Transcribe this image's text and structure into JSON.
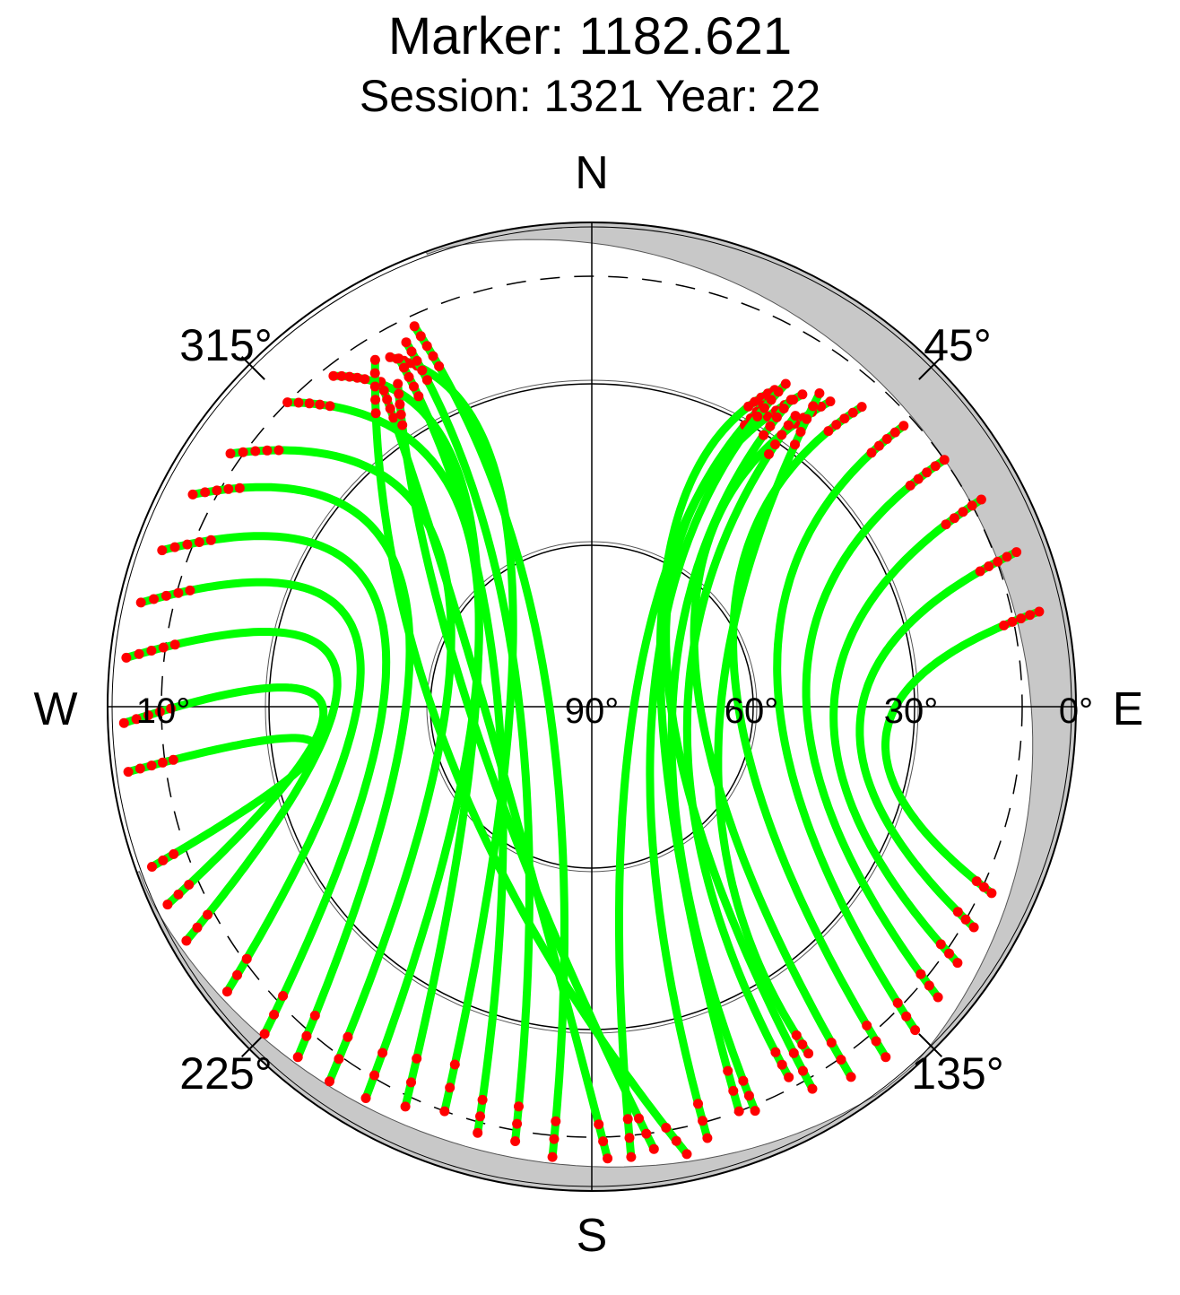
{
  "chart_data": {
    "type": "scatter",
    "projection": "polar-azimuth-elevation",
    "title": "Marker: 1182.621",
    "subtitle": "Session: 1321 Year: 22",
    "compass": {
      "north": "N",
      "south": "S",
      "east": "E",
      "west": "W"
    },
    "azimuth_ticks": [
      {
        "az": 45,
        "label": "45°"
      },
      {
        "az": 135,
        "label": "135°"
      },
      {
        "az": 225,
        "label": "225°"
      },
      {
        "az": 315,
        "label": "315°"
      }
    ],
    "elevation_ticks": [
      {
        "el": 90,
        "label": "90°"
      },
      {
        "el": 60,
        "label": "60°"
      },
      {
        "el": 30,
        "label": "30°"
      },
      {
        "el": 0,
        "label": "0°"
      },
      {
        "el": 10,
        "label": "10°",
        "side": "west"
      }
    ],
    "elevation_circles": [
      60,
      30
    ],
    "cutoff_elevation": 10,
    "elevation_range": [
      0,
      90
    ],
    "colors": {
      "valid": "#00ff00",
      "flagged": "#ff0000",
      "obstruction": "#c8c8c8",
      "grid": "#000000"
    },
    "tracks_west": [
      {
        "start": [
          330,
          15
        ],
        "top": [
          330,
          60
        ],
        "end": [
          200,
          10
        ]
      },
      {
        "start": [
          322,
          12
        ],
        "top": [
          322,
          55
        ],
        "end": [
          205,
          8
        ]
      },
      {
        "start": [
          315,
          10
        ],
        "top": [
          318,
          58
        ],
        "end": [
          210,
          6
        ]
      },
      {
        "start": [
          305,
          8
        ],
        "top": [
          310,
          55
        ],
        "end": [
          215,
          5
        ]
      },
      {
        "start": [
          298,
          6
        ],
        "top": [
          300,
          50
        ],
        "end": [
          220,
          5
        ]
      },
      {
        "start": [
          290,
          5
        ],
        "top": [
          292,
          48
        ],
        "end": [
          225,
          4
        ]
      },
      {
        "start": [
          283,
          4
        ],
        "top": [
          285,
          45
        ],
        "end": [
          232,
          4
        ]
      },
      {
        "start": [
          276,
          3
        ],
        "top": [
          278,
          42
        ],
        "end": [
          240,
          3
        ]
      },
      {
        "start": [
          268,
          3
        ],
        "top": [
          270,
          40
        ],
        "end": [
          245,
          3
        ]
      },
      {
        "start": [
          262,
          3
        ],
        "top": [
          262,
          38
        ],
        "end": [
          250,
          3
        ]
      },
      {
        "start": [
          335,
          12
        ],
        "top": [
          300,
          80
        ],
        "end": [
          185,
          6
        ]
      },
      {
        "start": [
          333,
          14
        ],
        "top": [
          290,
          75
        ],
        "end": [
          190,
          8
        ]
      },
      {
        "start": [
          331,
          16
        ],
        "top": [
          280,
          72
        ],
        "end": [
          195,
          8
        ]
      },
      {
        "start": [
          327,
          18
        ],
        "top": [
          270,
          70
        ],
        "end": [
          178,
          6
        ]
      },
      {
        "start": [
          329,
          20
        ],
        "top": [
          260,
          68
        ],
        "end": [
          172,
          7
        ]
      },
      {
        "start": [
          328,
          14
        ],
        "top": [
          250,
          62
        ],
        "end": [
          168,
          5
        ]
      }
    ],
    "tracks_east": [
      {
        "start": [
          30,
          22
        ],
        "top": [
          40,
          70
        ],
        "end": [
          160,
          10
        ]
      },
      {
        "start": [
          34,
          20
        ],
        "top": [
          50,
          72
        ],
        "end": [
          150,
          8
        ]
      },
      {
        "start": [
          38,
          18
        ],
        "top": [
          60,
          68
        ],
        "end": [
          145,
          6
        ]
      },
      {
        "start": [
          42,
          15
        ],
        "top": [
          70,
          62
        ],
        "end": [
          140,
          5
        ]
      },
      {
        "start": [
          48,
          12
        ],
        "top": [
          80,
          55
        ],
        "end": [
          135,
          5
        ]
      },
      {
        "start": [
          55,
          10
        ],
        "top": [
          85,
          50
        ],
        "end": [
          130,
          6
        ]
      },
      {
        "start": [
          62,
          8
        ],
        "top": [
          90,
          45
        ],
        "end": [
          125,
          7
        ]
      },
      {
        "start": [
          70,
          6
        ],
        "top": [
          92,
          40
        ],
        "end": [
          120,
          8
        ]
      },
      {
        "start": [
          78,
          5
        ],
        "top": [
          95,
          35
        ],
        "end": [
          115,
          8
        ]
      },
      {
        "start": [
          30,
          24
        ],
        "top": [
          60,
          80
        ],
        "end": [
          175,
          6
        ]
      },
      {
        "start": [
          31,
          20
        ],
        "top": [
          75,
          78
        ],
        "end": [
          165,
          7
        ]
      },
      {
        "start": [
          33,
          22
        ],
        "top": [
          90,
          75
        ],
        "end": [
          158,
          9
        ]
      },
      {
        "start": [
          35,
          24
        ],
        "top": [
          100,
          72
        ],
        "end": [
          152,
          12
        ]
      },
      {
        "start": [
          36,
          18
        ],
        "top": [
          110,
          65
        ],
        "end": [
          148,
          14
        ]
      }
    ]
  }
}
